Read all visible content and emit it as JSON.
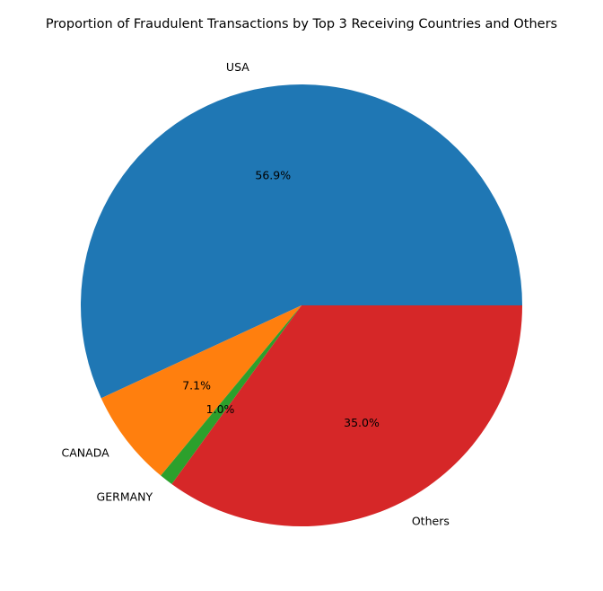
{
  "chart_data": {
    "type": "pie",
    "title": "Proportion of Fraudulent Transactions by Top 3 Receiving Countries and Others",
    "slices": [
      {
        "label": "USA",
        "value": 56.9,
        "pct_label": "56.9%",
        "color": "#1f77b4"
      },
      {
        "label": "CANADA",
        "value": 7.1,
        "pct_label": "7.1%",
        "color": "#ff7f0e"
      },
      {
        "label": "GERMANY",
        "value": 1.0,
        "pct_label": "1.0%",
        "color": "#2ca02c"
      },
      {
        "label": "Others",
        "value": 35.0,
        "pct_label": "35.0%",
        "color": "#d62728"
      }
    ],
    "start_angle_deg": 0,
    "direction": "counterclockwise",
    "legend": "none"
  }
}
